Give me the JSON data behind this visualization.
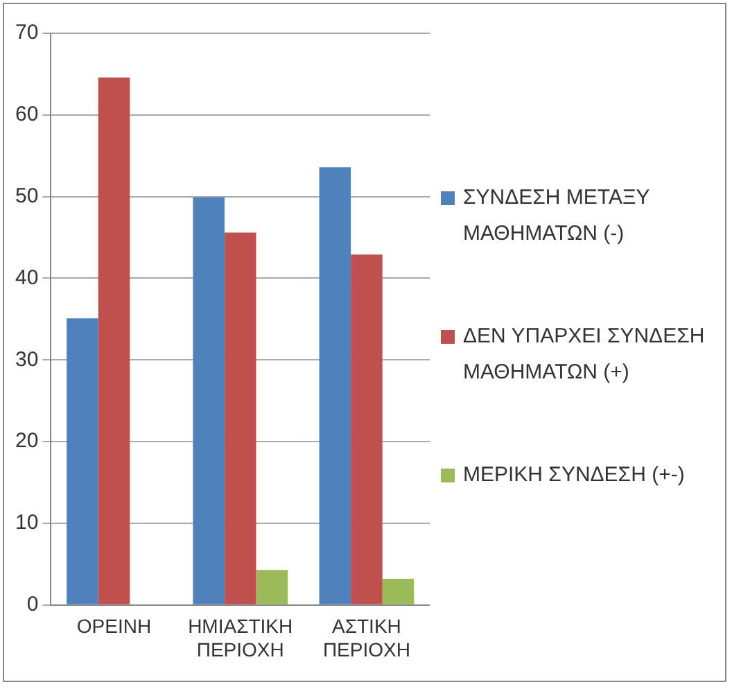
{
  "chart_data": {
    "type": "bar",
    "categories": [
      "ΟΡΕΙΝΗ",
      "ΗΜΙΑΣΤΙΚΗ ΠΕΡΙΟΧΗ",
      "ΑΣΤΙΚΗ ΠΕΡΙΟΧΗ"
    ],
    "series": [
      {
        "name": "ΣΥΝΔΕΣΗ ΜΕΤΑΞΥ ΜΑΘΗΜΑΤΩΝ (-)",
        "color": "#4f81bd",
        "values": [
          35.1,
          49.9,
          53.6
        ]
      },
      {
        "name": "ΔΕΝ ΥΠΑΡΧΕΙ ΣΥΝΔΕΣΗ ΜΑΘΗΜΑΤΩΝ (+)",
        "color": "#c0504d",
        "values": [
          64.6,
          45.6,
          42.9
        ]
      },
      {
        "name": "ΜΕΡΙΚΗ ΣΥΝΔΕΣΗ (+-)",
        "color": "#9bbb59",
        "values": [
          null,
          4.3,
          3.2
        ]
      }
    ],
    "ylim": [
      0,
      70
    ],
    "yticks": [
      0,
      10,
      20,
      30,
      40,
      50,
      60,
      70
    ],
    "grid": "y",
    "legend": "right"
  }
}
